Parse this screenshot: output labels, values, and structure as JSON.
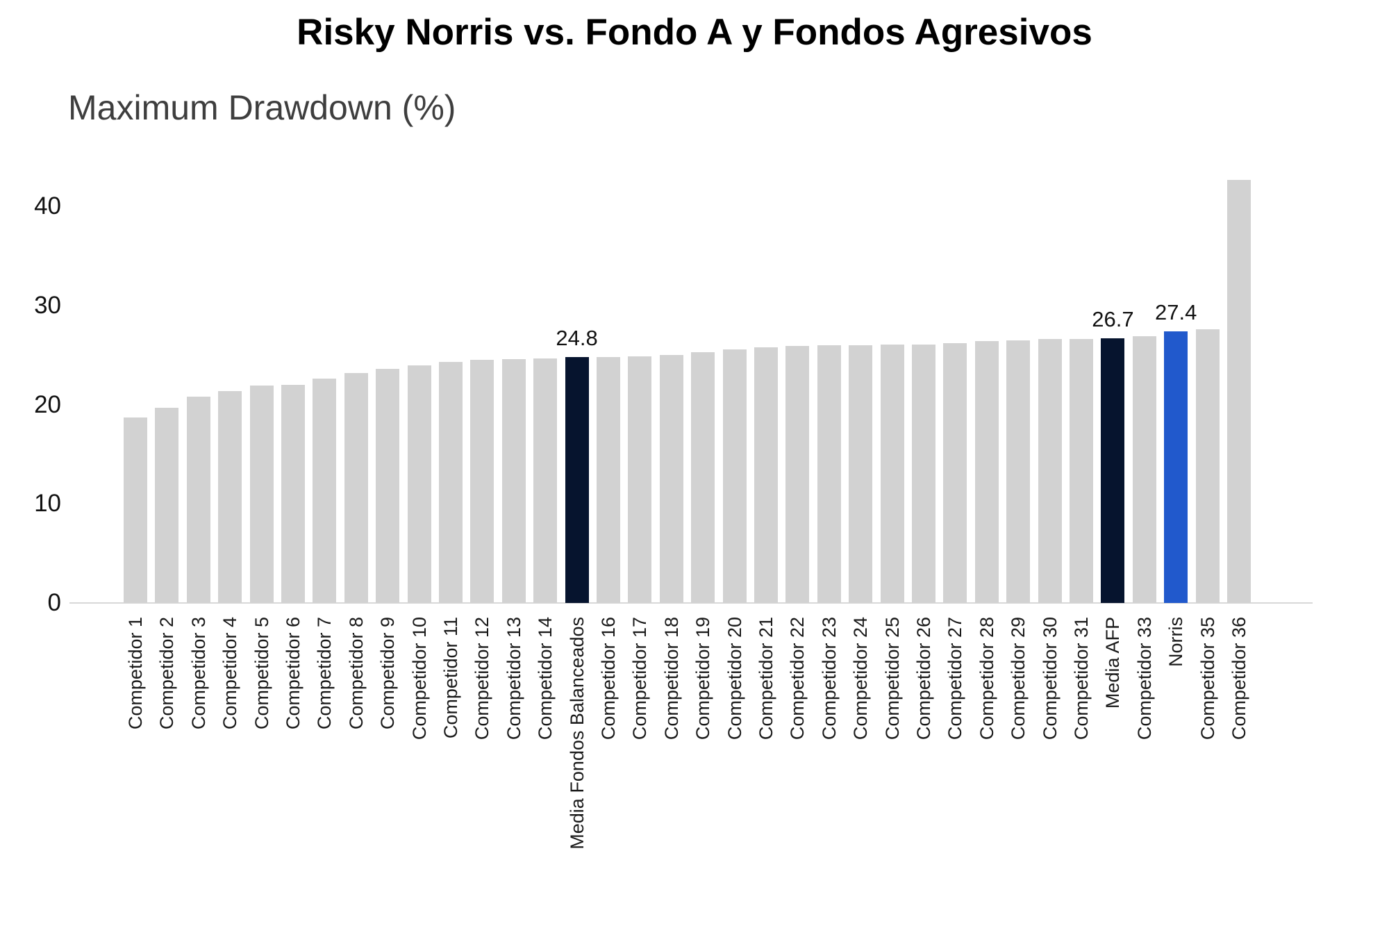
{
  "figure": {
    "title": "Risky Norris vs. Fondo A y Fondos Agresivos",
    "axis_title": "Maximum Drawdown (%)"
  },
  "colors": {
    "bar_default": "#d2d2d2",
    "bar_navy": "#06142e",
    "bar_blue": "#2159cc",
    "axis_line": "#d8d8d8",
    "title_text": "#000000",
    "axis_title_text": "#3e3e3e",
    "tick_text": "#111111"
  },
  "chart_data": {
    "type": "bar",
    "title": "Risky Norris vs. Fondo A y Fondos Agresivos",
    "ylabel": "Maximum Drawdown (%)",
    "xlabel": "",
    "ylim": [
      0,
      45
    ],
    "yticks": [
      0,
      10,
      20,
      30,
      40
    ],
    "grid": false,
    "legend_position": "none",
    "bar_color_default": "#d2d2d2",
    "highlight_colors": {
      "navy": "#06142e",
      "blue": "#2159cc"
    },
    "bars": [
      {
        "label": "Competidor 1",
        "value": 18.7,
        "color": "default"
      },
      {
        "label": "Competidor 2",
        "value": 19.7,
        "color": "default"
      },
      {
        "label": "Competidor 3",
        "value": 20.8,
        "color": "default"
      },
      {
        "label": "Competidor 4",
        "value": 21.4,
        "color": "default"
      },
      {
        "label": "Competidor 5",
        "value": 21.9,
        "color": "default"
      },
      {
        "label": "Competidor 6",
        "value": 22.0,
        "color": "default"
      },
      {
        "label": "Competidor 7",
        "value": 22.6,
        "color": "default"
      },
      {
        "label": "Competidor 8",
        "value": 23.2,
        "color": "default"
      },
      {
        "label": "Competidor 9",
        "value": 23.6,
        "color": "default"
      },
      {
        "label": "Competidor 10",
        "value": 24.0,
        "color": "default"
      },
      {
        "label": "Competidor 11",
        "value": 24.3,
        "color": "default"
      },
      {
        "label": "Competidor 12",
        "value": 24.5,
        "color": "default"
      },
      {
        "label": "Competidor 13",
        "value": 24.6,
        "color": "default"
      },
      {
        "label": "Competidor 14",
        "value": 24.7,
        "color": "default"
      },
      {
        "label": "Media Fondos Balanceados",
        "value": 24.8,
        "color": "navy",
        "value_label": "24.8"
      },
      {
        "label": "Competidor 16",
        "value": 24.8,
        "color": "default"
      },
      {
        "label": "Competidor 17",
        "value": 24.9,
        "color": "default"
      },
      {
        "label": "Competidor 18",
        "value": 25.0,
        "color": "default"
      },
      {
        "label": "Competidor 19",
        "value": 25.3,
        "color": "default"
      },
      {
        "label": "Competidor 20",
        "value": 25.6,
        "color": "default"
      },
      {
        "label": "Competidor 21",
        "value": 25.8,
        "color": "default"
      },
      {
        "label": "Competidor 22",
        "value": 25.9,
        "color": "default"
      },
      {
        "label": "Competidor 23",
        "value": 26.0,
        "color": "default"
      },
      {
        "label": "Competidor 24",
        "value": 26.0,
        "color": "default"
      },
      {
        "label": "Competidor 25",
        "value": 26.1,
        "color": "default"
      },
      {
        "label": "Competidor 26",
        "value": 26.1,
        "color": "default"
      },
      {
        "label": "Competidor 27",
        "value": 26.2,
        "color": "default"
      },
      {
        "label": "Competidor 28",
        "value": 26.4,
        "color": "default"
      },
      {
        "label": "Competidor 29",
        "value": 26.5,
        "color": "default"
      },
      {
        "label": "Competidor 30",
        "value": 26.6,
        "color": "default"
      },
      {
        "label": "Competidor 31",
        "value": 26.6,
        "color": "default"
      },
      {
        "label": "Media AFP",
        "value": 26.7,
        "color": "navy",
        "value_label": "26.7"
      },
      {
        "label": "Competidor 33",
        "value": 26.9,
        "color": "default"
      },
      {
        "label": "Norris",
        "value": 27.4,
        "color": "blue",
        "value_label": "27.4"
      },
      {
        "label": "Competidor 35",
        "value": 27.6,
        "color": "default"
      },
      {
        "label": "Competidor 36",
        "value": 42.7,
        "color": "default"
      }
    ]
  }
}
